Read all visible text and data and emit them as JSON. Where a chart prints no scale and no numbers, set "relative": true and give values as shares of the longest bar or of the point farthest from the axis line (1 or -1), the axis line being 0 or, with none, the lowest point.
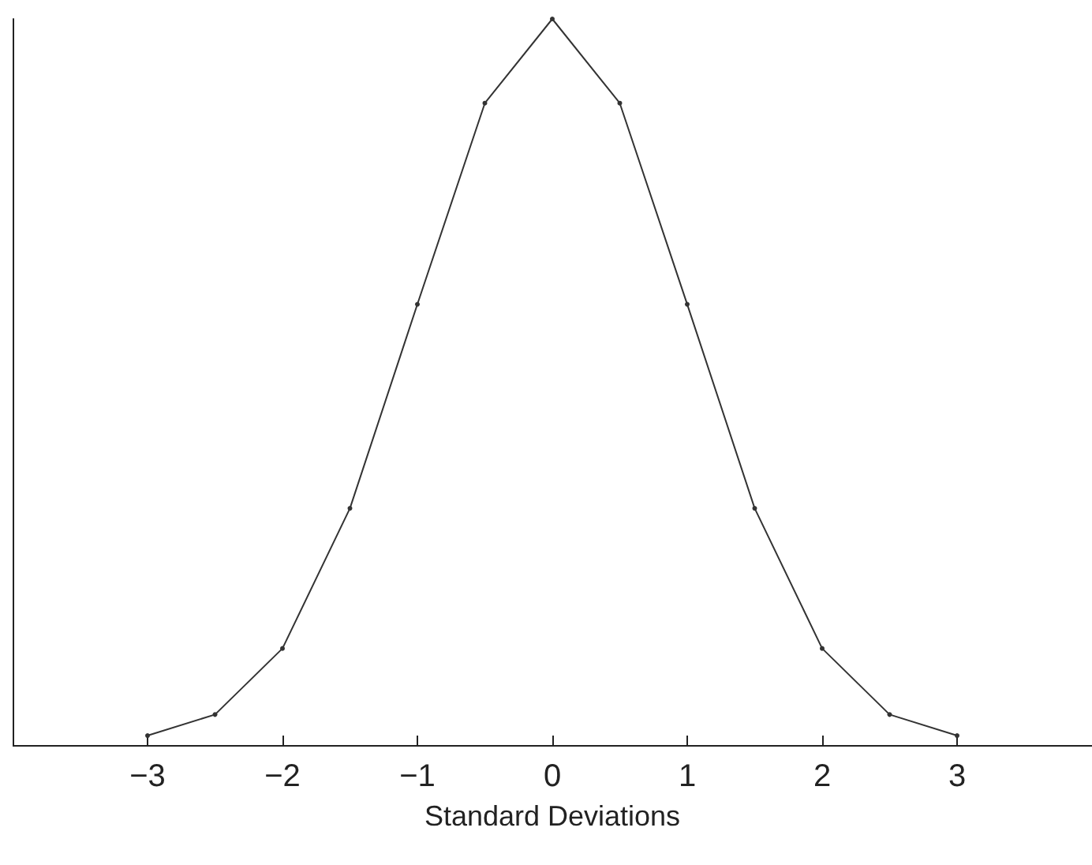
{
  "chart_data": {
    "type": "line",
    "xlabel": "Standard Deviations",
    "relative": true,
    "x": [
      -3,
      -2.5,
      -2,
      -1.5,
      -1,
      -0.5,
      0,
      0.5,
      1,
      1.5,
      2,
      2.5,
      3
    ],
    "series": [
      {
        "color": "#333333",
        "values": [
          0.013,
          0.042,
          0.133,
          0.326,
          0.607,
          0.884,
          1,
          0.884,
          0.607,
          0.326,
          0.133,
          0.042,
          0.013
        ]
      }
    ],
    "xlim": [
      -4,
      4
    ],
    "xticks": [
      -3,
      -2,
      -1,
      0,
      1,
      2,
      3
    ],
    "marker": "circle"
  }
}
